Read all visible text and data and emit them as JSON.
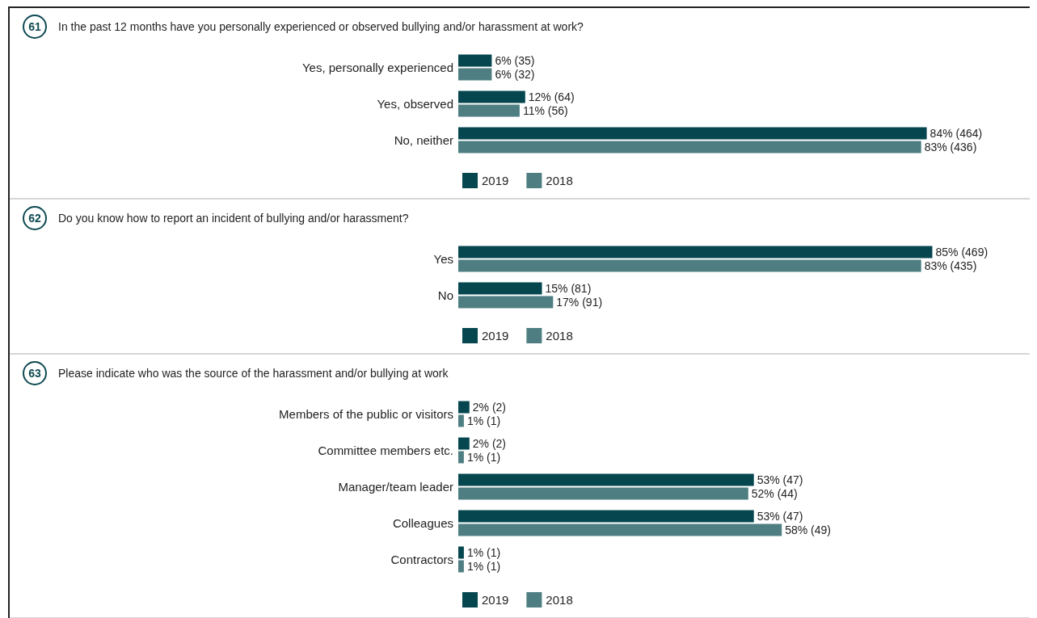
{
  "chart_data": [
    {
      "type": "bar",
      "orientation": "horizontal",
      "annotations": [
        "61"
      ],
      "title": "In the past 12 months have you personally experienced or observed bullying and/or harassment at work?",
      "categories": [
        "Yes, personally experienced",
        "Yes, observed",
        "No, neither"
      ],
      "legend": "bottom",
      "tick_labels": "y",
      "series": [
        {
          "name": "2019",
          "color": "#05464f",
          "values": [
            6,
            12,
            84
          ],
          "value_labels": [
            "6% (35)",
            "12% (64)",
            "84% (464)"
          ]
        },
        {
          "name": "2018",
          "color": "#4e7e82",
          "values": [
            6,
            11,
            83
          ],
          "value_labels": [
            "6% (32)",
            "11% (56)",
            "83% (436)"
          ]
        }
      ]
    },
    {
      "type": "bar",
      "orientation": "horizontal",
      "annotations": [
        "62"
      ],
      "title": "Do you know how to report an incident of bullying and/or harassment?",
      "categories": [
        "Yes",
        "No"
      ],
      "legend": "bottom",
      "tick_labels": "y",
      "series": [
        {
          "name": "2019",
          "color": "#05464f",
          "values": [
            85,
            15
          ],
          "value_labels": [
            "85% (469)",
            "15% (81)"
          ]
        },
        {
          "name": "2018",
          "color": "#4e7e82",
          "values": [
            83,
            17
          ],
          "value_labels": [
            "83% (435)",
            "17% (91)"
          ]
        }
      ]
    },
    {
      "type": "bar",
      "orientation": "horizontal",
      "annotations": [
        "63"
      ],
      "title": "Please indicate who was the source of the harassment and/or bullying at work",
      "categories": [
        "Members of the public or visitors",
        "Committee members etc.",
        "Manager/team leader",
        "Colleagues",
        "Contractors"
      ],
      "legend": "bottom",
      "tick_labels": "y",
      "series": [
        {
          "name": "2019",
          "color": "#05464f",
          "values": [
            2,
            2,
            53,
            53,
            1
          ],
          "value_labels": [
            "2% (2)",
            "2% (2)",
            "53% (47)",
            "53% (47)",
            "1% (1)"
          ]
        },
        {
          "name": "2018",
          "color": "#4e7e82",
          "values": [
            1,
            1,
            52,
            58,
            1
          ],
          "value_labels": [
            "1% (1)",
            "1% (1)",
            "52% (44)",
            "58% (49)",
            "1% (1)"
          ]
        }
      ]
    }
  ]
}
